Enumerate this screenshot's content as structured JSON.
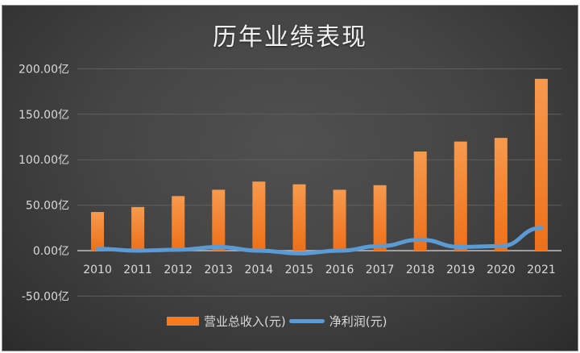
{
  "chart_data": {
    "type": "bar+line",
    "title": "历年业绩表现",
    "categories": [
      "2010",
      "2011",
      "2012",
      "2013",
      "2014",
      "2015",
      "2016",
      "2017",
      "2018",
      "2019",
      "2020",
      "2021"
    ],
    "series": [
      {
        "name": "营业总收入(元)",
        "type": "bar",
        "color": "#f47b20",
        "values": [
          42.5,
          48,
          60,
          67,
          76,
          73,
          67,
          72,
          109,
          120,
          124,
          189
        ]
      },
      {
        "name": "净利润(元)",
        "type": "line",
        "color": "#5b9bd5",
        "values": [
          2,
          0,
          1,
          4,
          0,
          -3,
          0,
          5,
          12,
          4,
          5,
          25
        ]
      }
    ],
    "xlabel": "",
    "ylabel": "",
    "unit": "亿",
    "ylim": [
      -50,
      200
    ],
    "yticks": [
      "200.00亿",
      "150.00亿",
      "100.00亿",
      "50.00亿",
      "0.00亿",
      "-50.00亿"
    ],
    "ytick_values": [
      200,
      150,
      100,
      50,
      0,
      -50
    ],
    "grid": true,
    "legend_position": "bottom"
  },
  "legend": {
    "revenue_label": "营业总收入(元)",
    "profit_label": "净利润(元)"
  }
}
